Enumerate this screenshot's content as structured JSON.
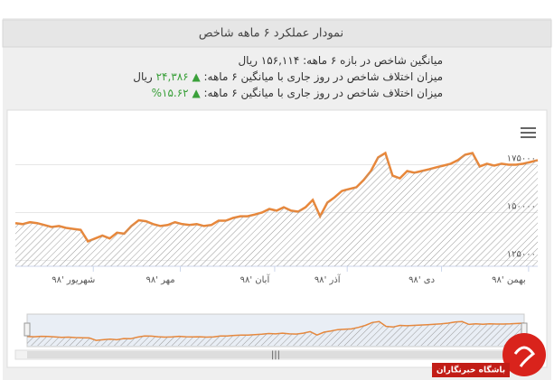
{
  "header": {
    "title": "نمودار عملکرد ۶ ماهه شاخص"
  },
  "stats": [
    {
      "label": "میانگین شاخص در بازه ۶ ماهه:",
      "value": "۱۵۶,۱۱۴ ریال"
    },
    {
      "label": "میزان اختلاف شاخص در روز جاری با میانگین ۶ ماهه:",
      "value": "۲۴,۳۸۶",
      "unit": "ریال"
    },
    {
      "label": "میزان اختلاف شاخص در روز جاری با میانگین ۶ ماهه:",
      "value": "۱۵.۶۲%"
    }
  ],
  "chart_data": {
    "type": "area",
    "categories": [
      null,
      null,
      null,
      null,
      null,
      null,
      null,
      null,
      "شهریور '۹۸",
      null,
      null,
      null,
      null,
      null,
      null,
      null,
      null,
      null,
      null,
      null,
      "مهر '۹۸",
      null,
      null,
      null,
      null,
      null,
      null,
      null,
      null,
      null,
      null,
      null,
      null,
      "آبان '۹۸",
      null,
      null,
      null,
      null,
      null,
      null,
      null,
      null,
      null,
      "آذر '۹۸",
      null,
      null,
      null,
      null,
      null,
      null,
      null,
      null,
      null,
      null,
      null,
      null,
      "دی '۹۸",
      null,
      null,
      null,
      null,
      null,
      null,
      null,
      null,
      null,
      null,
      null,
      "بهمن '۹۸",
      null,
      null,
      null,
      null
    ],
    "values": [
      144500,
      144000,
      145000,
      144500,
      143500,
      142500,
      143000,
      142000,
      141500,
      141000,
      135000,
      136500,
      138000,
      136500,
      139500,
      139000,
      143000,
      146000,
      145500,
      144000,
      143000,
      143500,
      145000,
      144000,
      143500,
      144000,
      143000,
      143500,
      145800,
      145800,
      147200,
      148100,
      148100,
      149000,
      150000,
      151900,
      151000,
      152800,
      151000,
      150500,
      152800,
      156600,
      148100,
      155200,
      158000,
      161300,
      162300,
      163200,
      167000,
      171700,
      178800,
      181100,
      169300,
      167900,
      171700,
      170800,
      171700,
      172600,
      173600,
      174500,
      175500,
      177400,
      180200,
      181100,
      174100,
      175500,
      174500,
      175500,
      175000,
      175000,
      175500,
      176400,
      177400
    ],
    "color": "#e8873a",
    "ylim": [
      122000,
      195000
    ],
    "yticks": [
      {
        "value": 125000,
        "label": "۱۲۵۰۰۰"
      },
      {
        "value": 150000,
        "label": "۱۵۰۰۰۰"
      },
      {
        "value": 175000,
        "label": "۱۷۵۰۰۰"
      }
    ],
    "grid": true
  },
  "watermark": "باشگاه خبرنگاران"
}
